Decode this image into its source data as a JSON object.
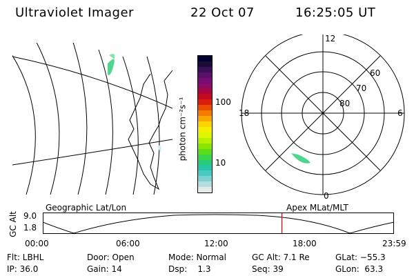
{
  "header": {
    "title": "Ultraviolet Imager",
    "date": "22 Oct 07",
    "time": "16:25:05 UT"
  },
  "colorbar": {
    "unit_label": "photon cm⁻²s⁻¹",
    "tick_100": "100",
    "tick_10": "10",
    "colors": [
      "#000033",
      "#1a0b3a",
      "#3b0f56",
      "#5a106a",
      "#760d74",
      "#8f0a63",
      "#a8073e",
      "#c20a1e",
      "#d91f0c",
      "#eb4d05",
      "#f57c03",
      "#f9a702",
      "#fcd200",
      "#f6ef00",
      "#dcf500",
      "#b6f000",
      "#8ae600",
      "#5cdc1a",
      "#3ad34c",
      "#27cb7a",
      "#24c6a5",
      "#49c9c4",
      "#7fd2d2",
      "#b7dede",
      "#e2eaea"
    ]
  },
  "geo_map": {
    "label": "Geographic Lat/Lon"
  },
  "polar_map": {
    "label": "Apex MLat/MLT",
    "mlt_labels": {
      "top": "12",
      "right": "6",
      "bottom": "0",
      "left": "18"
    },
    "lat_labels": [
      "60",
      "70",
      "80"
    ]
  },
  "altitude_plot": {
    "ylabel": "GC Alt",
    "ticks_y": [
      "9.0",
      "1.8"
    ],
    "ticks_x": [
      "00:00",
      "06:00",
      "12:00",
      "18:00",
      "23:59"
    ],
    "current_time_fraction": 0.681
  },
  "status": {
    "flt": "Flt: LBHL",
    "ip": "IP: 36.0",
    "door": "Door: Open",
    "gain": "Gain: 14",
    "mode": "Mode: Normal",
    "dsp": "Dsp:    1.3",
    "gcalt": "GC Alt: 7.1 Re",
    "seq": "Seq: 39",
    "glat": "GLat: −55.3",
    "glon": "GLon:  63.3"
  }
}
